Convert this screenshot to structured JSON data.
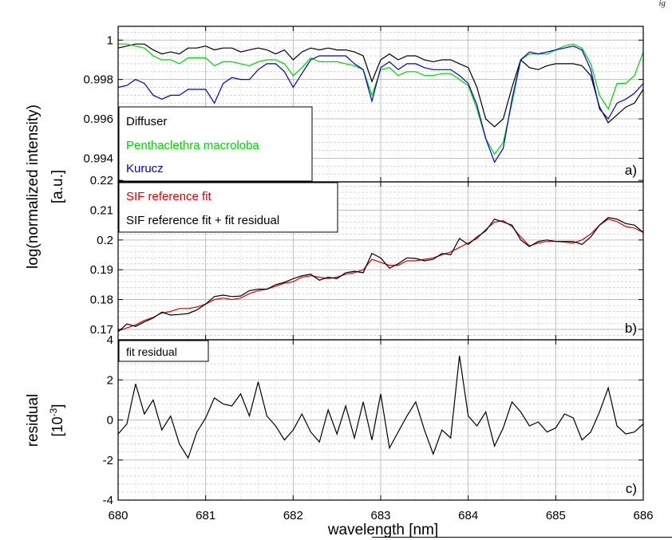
{
  "header": {
    "fragment": "ig"
  },
  "chart_data": [
    {
      "id": "a",
      "type": "line",
      "panel_label": "a)",
      "ylim": [
        0.9928,
        1.0007
      ],
      "yticks": [
        0.994,
        0.996,
        0.998,
        1
      ],
      "ytick_labels": [
        "0.994",
        "0.996",
        "0.998",
        "1"
      ],
      "grid": true,
      "legend_position": "bottom-left",
      "series": [
        {
          "name": "Diffuser",
          "color": "#000000",
          "x": [
            680.0,
            680.1,
            680.2,
            680.3,
            680.4,
            680.5,
            680.6,
            680.7,
            680.8,
            680.9,
            681.0,
            681.1,
            681.2,
            681.3,
            681.4,
            681.5,
            681.6,
            681.7,
            681.8,
            681.9,
            682.0,
            682.1,
            682.2,
            682.3,
            682.4,
            682.5,
            682.6,
            682.7,
            682.8,
            682.9,
            683.0,
            683.1,
            683.2,
            683.3,
            683.4,
            683.5,
            683.6,
            683.7,
            683.8,
            683.9,
            684.0,
            684.1,
            684.2,
            684.3,
            684.4,
            684.5,
            684.6,
            684.7,
            684.8,
            684.9,
            685.0,
            685.1,
            685.2,
            685.3,
            685.4,
            685.5,
            685.6,
            685.7,
            685.8,
            685.9,
            686.0
          ],
          "y": [
            0.9996,
            0.9997,
            0.9998,
            0.9998,
            0.9995,
            0.9993,
            0.9994,
            0.9993,
            0.9996,
            0.9996,
            0.9997,
            0.9995,
            0.9996,
            0.9996,
            0.9994,
            0.9995,
            0.9996,
            0.9995,
            0.9993,
            0.9995,
            0.999,
            0.9994,
            0.9996,
            0.9995,
            0.9996,
            0.9995,
            0.9995,
            0.9994,
            0.9992,
            0.9979,
            0.999,
            0.9993,
            0.999,
            0.9992,
            0.9992,
            0.999,
            0.9989,
            0.999,
            0.999,
            0.9988,
            0.9986,
            0.9976,
            0.996,
            0.9956,
            0.996,
            0.9976,
            0.999,
            0.9986,
            0.9985,
            0.9987,
            0.9988,
            0.9988,
            0.9988,
            0.9987,
            0.9982,
            0.9966,
            0.9958,
            0.9962,
            0.9966,
            0.9968,
            0.9975
          ]
        },
        {
          "name": "Penthaclethra macroloba",
          "color": "#00d400",
          "x": [
            680.0,
            680.1,
            680.2,
            680.3,
            680.4,
            680.5,
            680.6,
            680.7,
            680.8,
            680.9,
            681.0,
            681.1,
            681.2,
            681.3,
            681.4,
            681.5,
            681.6,
            681.7,
            681.8,
            681.9,
            682.0,
            682.1,
            682.2,
            682.3,
            682.4,
            682.5,
            682.6,
            682.7,
            682.8,
            682.9,
            683.0,
            683.1,
            683.2,
            683.3,
            683.4,
            683.5,
            683.6,
            683.7,
            683.8,
            683.9,
            684.0,
            684.1,
            684.2,
            684.3,
            684.4,
            684.5,
            684.6,
            684.7,
            684.8,
            684.9,
            685.0,
            685.1,
            685.2,
            685.3,
            685.4,
            685.5,
            685.6,
            685.7,
            685.8,
            685.9,
            686.0
          ],
          "y": [
            0.9998,
            0.9998,
            0.9997,
            0.9996,
            0.9992,
            0.999,
            0.999,
            0.9988,
            0.9991,
            0.9991,
            0.9991,
            0.9987,
            0.9989,
            0.9989,
            0.9988,
            0.9987,
            0.9989,
            0.999,
            0.999,
            0.9988,
            0.9982,
            0.9986,
            0.9991,
            0.9989,
            0.9989,
            0.9989,
            0.9988,
            0.9987,
            0.9985,
            0.9972,
            0.9985,
            0.9986,
            0.9982,
            0.9984,
            0.9984,
            0.9982,
            0.9982,
            0.9983,
            0.9983,
            0.998,
            0.9977,
            0.9965,
            0.995,
            0.9942,
            0.9948,
            0.9968,
            0.999,
            0.9993,
            0.9993,
            0.9993,
            0.9995,
            0.9997,
            0.9998,
            0.9996,
            0.9988,
            0.9972,
            0.9965,
            0.9978,
            0.9978,
            0.9982,
            0.9994
          ]
        },
        {
          "name": "Kurucz",
          "color": "#0000cc",
          "x": [
            680.0,
            680.1,
            680.2,
            680.3,
            680.4,
            680.5,
            680.6,
            680.7,
            680.8,
            680.9,
            681.0,
            681.1,
            681.2,
            681.3,
            681.4,
            681.5,
            681.6,
            681.7,
            681.8,
            681.9,
            682.0,
            682.1,
            682.2,
            682.3,
            682.4,
            682.5,
            682.6,
            682.7,
            682.8,
            682.9,
            683.0,
            683.1,
            683.2,
            683.3,
            683.4,
            683.5,
            683.6,
            683.7,
            683.8,
            683.9,
            684.0,
            684.1,
            684.2,
            684.3,
            684.4,
            684.5,
            684.6,
            684.7,
            684.8,
            684.9,
            685.0,
            685.1,
            685.2,
            685.3,
            685.4,
            685.5,
            685.6,
            685.7,
            685.8,
            685.9,
            686.0
          ],
          "y": [
            0.9976,
            0.9977,
            0.998,
            0.9978,
            0.9972,
            0.997,
            0.9972,
            0.9972,
            0.9975,
            0.9975,
            0.9975,
            0.9968,
            0.9978,
            0.9981,
            0.998,
            0.998,
            0.9985,
            0.9988,
            0.9988,
            0.9984,
            0.9976,
            0.9983,
            0.999,
            0.9992,
            0.9992,
            0.9992,
            0.9992,
            0.9988,
            0.9985,
            0.9969,
            0.9986,
            0.9989,
            0.9985,
            0.9988,
            0.9988,
            0.9986,
            0.9985,
            0.9985,
            0.9985,
            0.9982,
            0.9978,
            0.9967,
            0.995,
            0.9938,
            0.9945,
            0.997,
            0.999,
            0.9994,
            0.9993,
            0.9994,
            0.9995,
            0.9996,
            0.9997,
            0.9995,
            0.9985,
            0.9965,
            0.996,
            0.9968,
            0.997,
            0.9973,
            0.9978
          ]
        }
      ]
    },
    {
      "id": "b",
      "type": "line",
      "panel_label": "b)",
      "ylim": [
        0.1665,
        0.2195
      ],
      "yticks": [
        0.17,
        0.18,
        0.19,
        0.2,
        0.21,
        0.22
      ],
      "ytick_labels": [
        "0.17",
        "0.18",
        "0.19",
        "0.2",
        "0.21",
        "0.22"
      ],
      "grid": true,
      "legend_position": "top-left",
      "series": [
        {
          "name": "SIF reference fit",
          "color": "#e00000",
          "x": [
            680.0,
            680.1,
            680.2,
            680.3,
            680.4,
            680.5,
            680.6,
            680.7,
            680.8,
            680.9,
            681.0,
            681.1,
            681.2,
            681.3,
            681.4,
            681.5,
            681.6,
            681.7,
            681.8,
            681.9,
            682.0,
            682.1,
            682.2,
            682.3,
            682.4,
            682.5,
            682.6,
            682.7,
            682.8,
            682.9,
            683.0,
            683.1,
            683.2,
            683.3,
            683.4,
            683.5,
            683.6,
            683.7,
            683.8,
            683.9,
            684.0,
            684.1,
            684.2,
            684.3,
            684.4,
            684.5,
            684.6,
            684.7,
            684.8,
            684.9,
            685.0,
            685.1,
            685.2,
            685.3,
            685.4,
            685.5,
            685.6,
            685.7,
            685.8,
            685.9,
            686.0
          ],
          "y": [
            0.1695,
            0.1705,
            0.1715,
            0.173,
            0.174,
            0.1755,
            0.176,
            0.177,
            0.177,
            0.1775,
            0.1785,
            0.18,
            0.1805,
            0.18,
            0.1805,
            0.182,
            0.183,
            0.1835,
            0.1845,
            0.1855,
            0.186,
            0.1875,
            0.188,
            0.1875,
            0.187,
            0.1875,
            0.1885,
            0.189,
            0.19,
            0.1935,
            0.1925,
            0.1915,
            0.1915,
            0.193,
            0.193,
            0.1935,
            0.194,
            0.195,
            0.196,
            0.1975,
            0.199,
            0.2005,
            0.2035,
            0.206,
            0.2065,
            0.2045,
            0.201,
            0.198,
            0.199,
            0.1995,
            0.1995,
            0.1993,
            0.199,
            0.2,
            0.202,
            0.205,
            0.207,
            0.2062,
            0.2045,
            0.204,
            0.2025
          ]
        },
        {
          "name": "SIF reference fit + fit residual",
          "color": "#000000",
          "x": [
            680.0,
            680.1,
            680.2,
            680.3,
            680.4,
            680.5,
            680.6,
            680.7,
            680.8,
            680.9,
            681.0,
            681.1,
            681.2,
            681.3,
            681.4,
            681.5,
            681.6,
            681.7,
            681.8,
            681.9,
            682.0,
            682.1,
            682.2,
            682.3,
            682.4,
            682.5,
            682.6,
            682.7,
            682.8,
            682.9,
            683.0,
            683.1,
            683.2,
            683.3,
            683.4,
            683.5,
            683.6,
            683.7,
            683.8,
            683.9,
            684.0,
            684.1,
            684.2,
            684.3,
            684.4,
            684.5,
            684.6,
            684.7,
            684.8,
            684.9,
            685.0,
            685.1,
            685.2,
            685.3,
            685.4,
            685.5,
            685.6,
            685.7,
            685.8,
            685.9,
            686.0
          ],
          "y": [
            0.1692,
            0.1718,
            0.171,
            0.1725,
            0.1738,
            0.1758,
            0.1748,
            0.175,
            0.1753,
            0.1765,
            0.1785,
            0.181,
            0.1815,
            0.181,
            0.1812,
            0.183,
            0.1835,
            0.1835,
            0.185,
            0.1858,
            0.187,
            0.188,
            0.1885,
            0.1865,
            0.1875,
            0.187,
            0.189,
            0.1895,
            0.189,
            0.1955,
            0.194,
            0.1905,
            0.192,
            0.194,
            0.1938,
            0.193,
            0.1935,
            0.1955,
            0.195,
            0.2005,
            0.1985,
            0.201,
            0.203,
            0.207,
            0.206,
            0.205,
            0.2,
            0.1978,
            0.1995,
            0.2,
            0.1995,
            0.1995,
            0.1995,
            0.1985,
            0.201,
            0.205,
            0.2075,
            0.207,
            0.2055,
            0.205,
            0.2025
          ]
        }
      ]
    },
    {
      "id": "c",
      "type": "line",
      "panel_label": "c)",
      "ylim": [
        -4,
        4
      ],
      "yticks": [
        -4,
        -2,
        0,
        2,
        4
      ],
      "ytick_labels": [
        "-4",
        "-2",
        "0",
        "2",
        "4"
      ],
      "grid": true,
      "legend_position": "top-left",
      "series": [
        {
          "name": "fit residual",
          "color": "#000000",
          "x": [
            680.0,
            680.1,
            680.2,
            680.3,
            680.4,
            680.5,
            680.6,
            680.7,
            680.8,
            680.9,
            681.0,
            681.1,
            681.2,
            681.3,
            681.4,
            681.5,
            681.6,
            681.7,
            681.8,
            681.9,
            682.0,
            682.1,
            682.2,
            682.3,
            682.4,
            682.5,
            682.6,
            682.7,
            682.8,
            682.9,
            683.0,
            683.1,
            683.2,
            683.3,
            683.4,
            683.5,
            683.6,
            683.7,
            683.8,
            683.9,
            684.0,
            684.1,
            684.2,
            684.3,
            684.4,
            684.5,
            684.6,
            684.7,
            684.8,
            684.9,
            685.0,
            685.1,
            685.2,
            685.3,
            685.4,
            685.5,
            685.6,
            685.7,
            685.8,
            685.9,
            686.0
          ],
          "y": [
            -0.7,
            -0.2,
            1.8,
            0.3,
            1.0,
            -0.5,
            0.2,
            -1.2,
            -1.9,
            -0.6,
            0.1,
            1.1,
            0.8,
            0.7,
            1.3,
            0.2,
            1.9,
            0.2,
            -0.3,
            -1.0,
            -0.5,
            0.3,
            -0.6,
            -1.1,
            0.5,
            -0.7,
            0.7,
            -0.9,
            0.9,
            -1.0,
            1.3,
            -1.4,
            -0.6,
            0.2,
            0.9,
            -0.5,
            -1.7,
            -0.5,
            -0.9,
            3.2,
            0.2,
            -0.3,
            0.4,
            -1.3,
            -0.4,
            0.9,
            0.4,
            -0.3,
            -0.1,
            -0.6,
            -0.4,
            0.3,
            0.1,
            -1.0,
            -0.6,
            0.4,
            1.6,
            -0.3,
            -0.7,
            -0.6,
            -0.2
          ]
        }
      ]
    }
  ],
  "shared": {
    "xlim": [
      680,
      686
    ],
    "xticks": [
      680,
      681,
      682,
      683,
      684,
      685,
      686
    ],
    "xtick_labels": [
      "680",
      "681",
      "682",
      "683",
      "684",
      "685",
      "686"
    ],
    "xlabel": "wavelength [nm]",
    "ylabel_ab": [
      "log(normalized intensity)",
      "[a.u.]"
    ],
    "ylabel_c": [
      "residual",
      "[10",
      "-3",
      "]"
    ]
  }
}
